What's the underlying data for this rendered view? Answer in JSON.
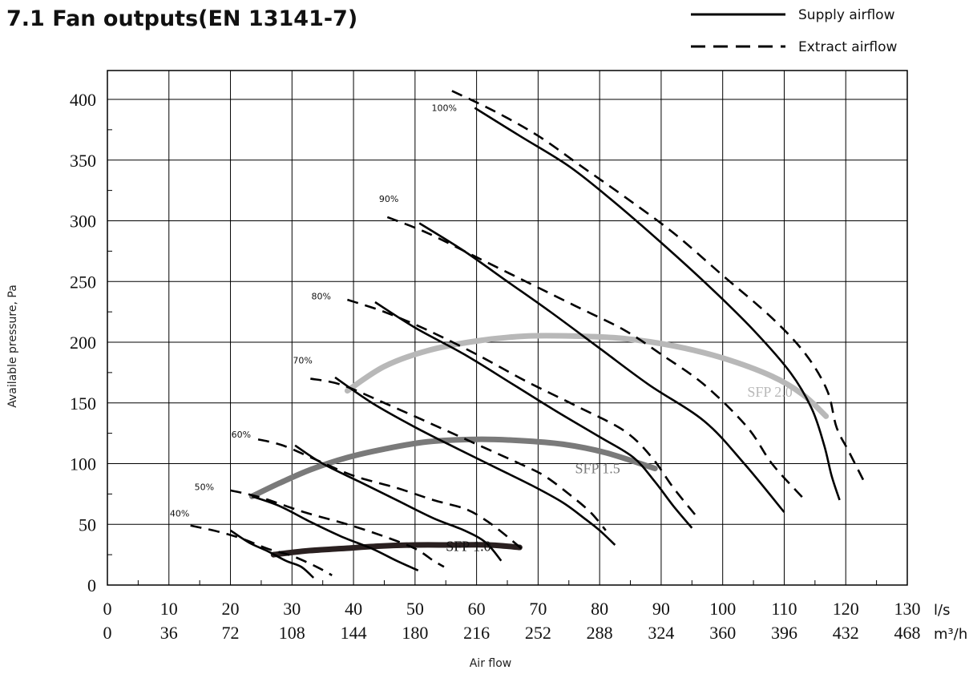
{
  "page_title": "7.1 Fan outputs(EN 13141-7)",
  "chart_data": {
    "type": "line",
    "title": "7.1 Fan outputs(EN 13141-7)",
    "xlabel": "Air flow",
    "ylabel": "Available pressure, Pa",
    "xlim": [
      0,
      130
    ],
    "ylim": [
      0,
      400
    ],
    "grid": true,
    "legend_position": "top-right",
    "x_unit_primary": "l/s",
    "x_unit_secondary": "m³/h",
    "x_ticks": [
      0,
      10,
      20,
      30,
      40,
      50,
      60,
      70,
      80,
      90,
      100,
      110,
      120,
      130
    ],
    "x_ticks_m3h": [
      "0",
      "36",
      "72",
      "108",
      "144",
      "180",
      "216",
      "252",
      "288",
      "324",
      "360",
      "396",
      "432",
      "468"
    ],
    "y_ticks": [
      0,
      50,
      100,
      150,
      200,
      250,
      300,
      350,
      400
    ],
    "legend": [
      {
        "name": "Supply airflow",
        "style": "solid"
      },
      {
        "name": "Extract airflow",
        "style": "dashed"
      }
    ],
    "speed_labels": [
      {
        "text": "100%",
        "x": 55,
        "y": 393
      },
      {
        "text": "90%",
        "x": 46,
        "y": 318
      },
      {
        "text": "80%",
        "x": 35,
        "y": 238
      },
      {
        "text": "70%",
        "x": 32,
        "y": 185
      },
      {
        "text": "60%",
        "x": 22,
        "y": 124
      },
      {
        "text": "50%",
        "x": 16,
        "y": 81
      },
      {
        "text": "40%",
        "x": 12,
        "y": 59
      }
    ],
    "series": [
      {
        "name": "Supply airflow",
        "speed": "100%",
        "style": "solid",
        "x": [
          59.7,
          67,
          75,
          82,
          90,
          98,
          105,
          111,
          114.5,
          116.5,
          117.7,
          119
        ],
        "y": [
          393,
          370,
          345,
          317,
          282,
          245,
          210,
          175,
          145,
          115,
          90,
          70
        ]
      },
      {
        "name": "Extract airflow",
        "speed": "100%",
        "style": "dashed",
        "x": [
          56,
          63,
          70,
          77,
          84,
          92,
          100,
          108,
          113.5,
          117,
          118.5,
          120.5,
          123
        ],
        "y": [
          407,
          390,
          370,
          345,
          320,
          290,
          255,
          220,
          190,
          160,
          130,
          110,
          85
        ]
      },
      {
        "name": "Supply airflow",
        "speed": "90%",
        "style": "solid",
        "x": [
          50.7,
          58,
          65,
          72,
          80,
          88,
          97,
          103.5,
          110
        ],
        "y": [
          298,
          275,
          250,
          225,
          195,
          165,
          135,
          100,
          60
        ]
      },
      {
        "name": "Extract airflow",
        "speed": "90%",
        "style": "dashed",
        "x": [
          45.5,
          52,
          60,
          68,
          76,
          84,
          90,
          97,
          104,
          108,
          113
        ],
        "y": [
          303,
          290,
          270,
          250,
          230,
          210,
          190,
          165,
          130,
          100,
          72
        ]
      },
      {
        "name": "Supply airflow",
        "speed": "80%",
        "style": "solid",
        "x": [
          43.5,
          50,
          58,
          66,
          73,
          80,
          85.5,
          89,
          92,
          95
        ],
        "y": [
          233,
          212,
          190,
          165,
          143,
          122,
          105,
          85,
          65,
          47
        ]
      },
      {
        "name": "Extract airflow",
        "speed": "80%",
        "style": "dashed",
        "x": [
          39,
          45,
          52,
          60,
          68,
          76,
          84,
          88.5,
          92,
          96
        ],
        "y": [
          235,
          225,
          210,
          190,
          168,
          148,
          127,
          105,
          80,
          55
        ]
      },
      {
        "name": "Supply airflow",
        "speed": "70%",
        "style": "solid",
        "x": [
          37,
          43,
          50,
          57,
          63,
          69,
          74,
          77.5,
          80,
          82.5
        ],
        "y": [
          171,
          150,
          130,
          112,
          97,
          82,
          68,
          55,
          45,
          33
        ]
      },
      {
        "name": "Extract airflow",
        "speed": "70%",
        "style": "dashed",
        "x": [
          33,
          38,
          45,
          53,
          60,
          67,
          71,
          75,
          78.5,
          81
        ],
        "y": [
          170,
          165,
          150,
          132,
          116,
          100,
          90,
          75,
          60,
          45
        ]
      },
      {
        "name": "Supply airflow",
        "speed": "60%",
        "style": "solid",
        "x": [
          30.5,
          35,
          41,
          47,
          53,
          58,
          61.5,
          64
        ],
        "y": [
          115,
          100,
          85,
          70,
          55,
          45,
          35,
          20
        ]
      },
      {
        "name": "Extract airflow",
        "speed": "60%",
        "style": "dashed",
        "x": [
          24.5,
          28.5,
          34,
          40,
          47,
          53,
          58,
          61,
          64,
          68
        ],
        "y": [
          120,
          115,
          103,
          90,
          80,
          70,
          63,
          55,
          44,
          27
        ]
      },
      {
        "name": "Supply airflow",
        "speed": "50%",
        "style": "solid",
        "x": [
          23.5,
          28,
          33,
          38,
          43,
          47,
          50.5
        ],
        "y": [
          73,
          65,
          52,
          40,
          30,
          20,
          12
        ]
      },
      {
        "name": "Extract airflow",
        "speed": "50%",
        "style": "dashed",
        "x": [
          20,
          25,
          32,
          39,
          45,
          50,
          53,
          54.7
        ],
        "y": [
          78,
          72,
          60,
          50,
          40,
          30,
          20,
          15
        ]
      },
      {
        "name": "Supply airflow",
        "speed": "40%",
        "style": "solid",
        "x": [
          20,
          23,
          26,
          29,
          31.5,
          33.5
        ],
        "y": [
          45,
          35,
          28,
          20,
          15,
          6
        ]
      },
      {
        "name": "Extract airflow",
        "speed": "40%",
        "style": "dashed",
        "x": [
          13.5,
          18,
          22,
          26,
          30,
          34,
          36.5
        ],
        "y": [
          49,
          44,
          38,
          30,
          24,
          15,
          8
        ]
      }
    ],
    "sfp_curves": [
      {
        "name": "SFP 2.0",
        "color": "#b8b8b8",
        "label_x": 104,
        "label_y": 155,
        "x": [
          39,
          45,
          52,
          60,
          68,
          76,
          84,
          92,
          100,
          108,
          113,
          116.8
        ],
        "y": [
          160,
          180,
          193,
          201,
          205,
          205,
          203,
          197,
          187,
          172,
          157,
          139
        ]
      },
      {
        "name": "SFP 1.5",
        "color": "#7a7a7a",
        "label_x": 76,
        "label_y": 92,
        "x": [
          23.5,
          28,
          33,
          39,
          45,
          52,
          60,
          67,
          74,
          81,
          89
        ],
        "y": [
          73,
          84,
          95,
          105,
          112,
          118,
          120,
          119,
          116,
          109,
          96
        ]
      },
      {
        "name": "SFP 1.0",
        "color": "#2a2020",
        "label_x": 55,
        "label_y": 28,
        "x": [
          27,
          32,
          38,
          44,
          50,
          56,
          62,
          67
        ],
        "y": [
          25,
          28,
          30,
          32,
          33,
          33,
          33,
          31
        ]
      }
    ]
  }
}
